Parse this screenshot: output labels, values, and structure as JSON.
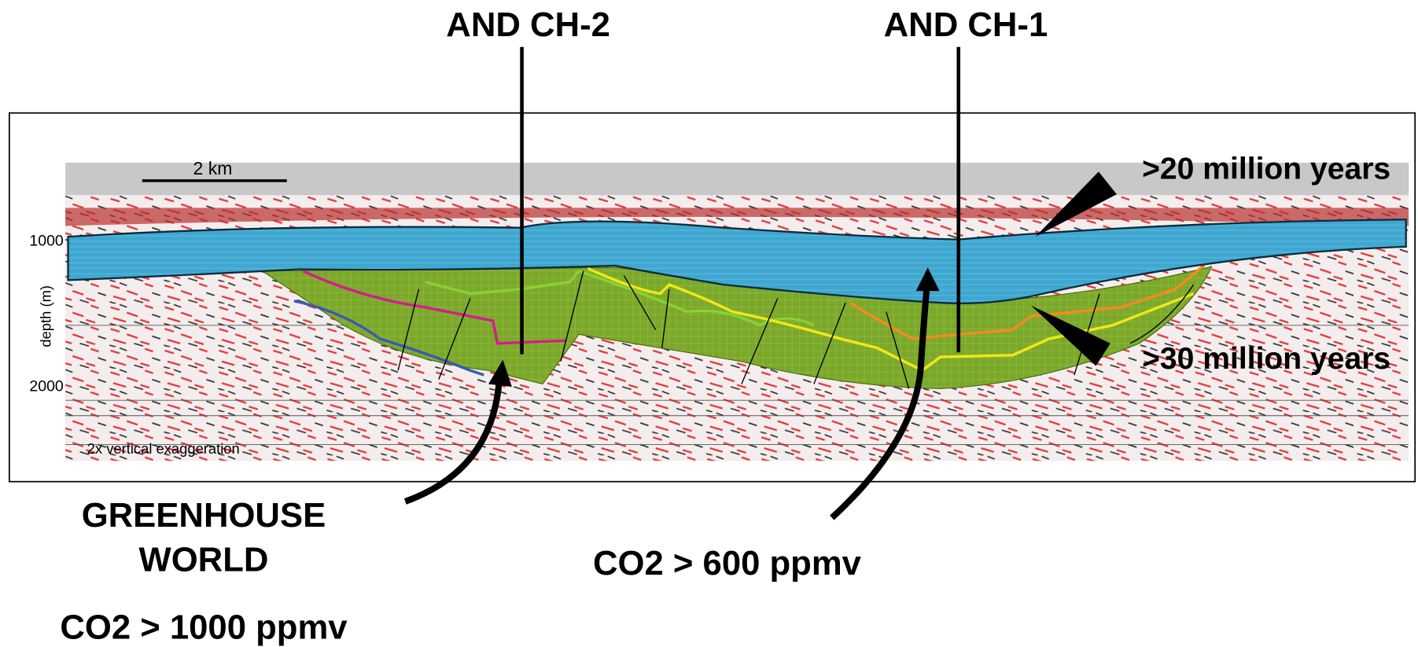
{
  "labels": {
    "top_left": "AND CH-2",
    "top_right": "AND CH-1",
    "scale": "2 km",
    "age_upper": ">20 million years",
    "age_lower": ">30 million years",
    "depth_1000": "1000",
    "depth_2000": "2000",
    "depth_axis": "depth (m)",
    "exaggeration": "2x vertical exaggeration",
    "greenhouse_1": "GREENHOUSE",
    "greenhouse_2": "WORLD",
    "co2_600": "CO2 > 600 ppmv",
    "co2_1000": "CO2 > 1000 ppmv"
  }
}
